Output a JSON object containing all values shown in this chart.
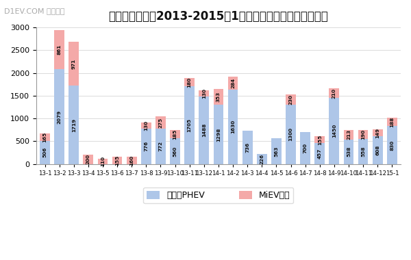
{
  "title": "三菱插电式汽车2013-2015年1月日本销量统计（单位：辆）",
  "watermark": "D1EV.COM 第一电动",
  "categories": [
    "13-1",
    "13-2",
    "13-3",
    "13-4",
    "13-5",
    "13-6",
    "13-7",
    "13-8",
    "13-9",
    "13-10",
    "13-11",
    "13-12",
    "14-1",
    "14-2",
    "14-3",
    "14-4",
    "14-5",
    "14-6",
    "14-7",
    "14-8",
    "14-9",
    "14-10",
    "14-11",
    "14-12",
    "15-1"
  ],
  "phev": [
    506,
    2079,
    1719,
    0,
    0,
    0,
    0,
    776,
    772,
    560,
    1705,
    1488,
    1298,
    1630,
    736,
    226,
    563,
    1300,
    700,
    457,
    1450,
    538,
    558,
    608,
    830
  ],
  "miev": [
    165,
    861,
    971,
    200,
    110,
    155,
    160,
    130,
    275,
    185,
    180,
    130,
    353,
    284,
    0,
    0,
    0,
    230,
    0,
    155,
    210,
    213,
    190,
    149,
    188
  ],
  "phev_color": "#aec6e8",
  "miev_color": "#f4a9a8",
  "phev_label": "欧蓝德PHEV",
  "miev_label": "MiEV车系",
  "ylim": [
    0,
    3000
  ],
  "yticks": [
    0,
    500,
    1000,
    1500,
    2000,
    2500,
    3000
  ],
  "bg_color": "#ffffff",
  "title_fontsize": 12,
  "watermark_fontsize": 8
}
